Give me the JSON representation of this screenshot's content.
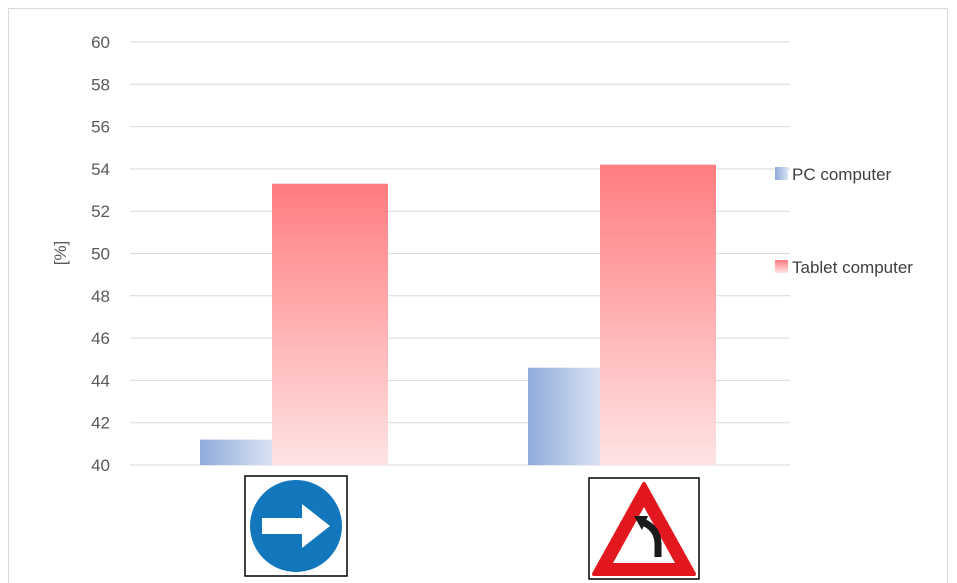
{
  "chart_data": {
    "type": "bar",
    "title": "",
    "xlabel": "",
    "ylabel": "[%]",
    "ylim": [
      40,
      60
    ],
    "yticks": [
      40,
      42,
      44,
      46,
      48,
      50,
      52,
      54,
      56,
      58,
      60
    ],
    "grid": true,
    "legend_position": "right",
    "categories": [
      "mandatory-turn-right-sign",
      "dangerous-curve-left-sign"
    ],
    "series": [
      {
        "name": "PC computer",
        "values": [
          41.2,
          44.6
        ],
        "color": "#8faadc"
      },
      {
        "name": "Tablet computer",
        "values": [
          53.3,
          54.2
        ],
        "color": "#ff7c80"
      }
    ]
  },
  "icons": {
    "category_1": "mandatory-turn-right-sign-icon",
    "category_2": "dangerous-curve-left-warning-sign-icon",
    "sign_blue": "#1277bc",
    "sign_red": "#e3171e"
  }
}
